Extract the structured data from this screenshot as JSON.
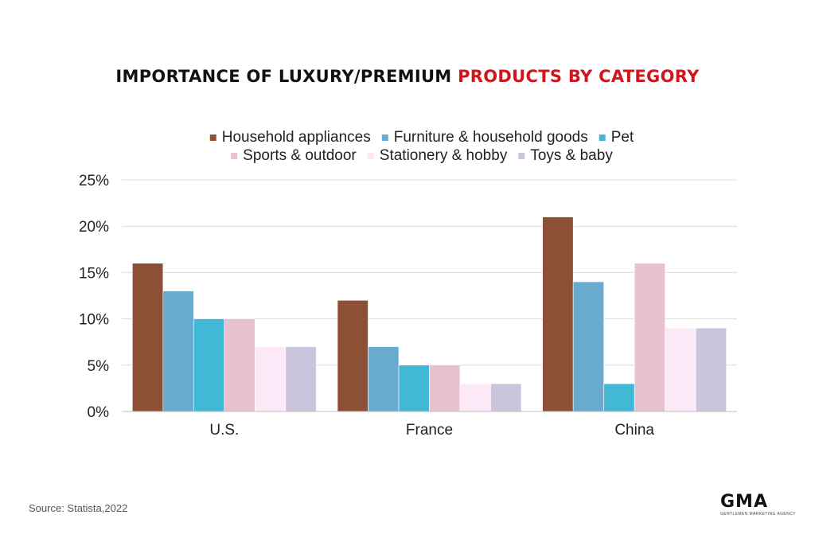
{
  "title": {
    "part1": "IMPORTANCE OF LUXURY/PREMIUM ",
    "part2": "PRODUCTS BY CATEGORY"
  },
  "source": "Source: Statista,2022",
  "logo": {
    "text": "GMA",
    "subtitle": "GENTLEMEN MARKETING AGENCY"
  },
  "colors": {
    "accent": "#d0151c",
    "series": [
      "#8b5035",
      "#68abcf",
      "#40b8d6",
      "#e8c0cf",
      "#fde8f7",
      "#cac4dc"
    ]
  },
  "chart_data": {
    "type": "bar",
    "title": "IMPORTANCE OF LUXURY/PREMIUM PRODUCTS BY CATEGORY",
    "categories": [
      "U.S.",
      "France",
      "China"
    ],
    "series": [
      {
        "name": "Household appliances",
        "values": [
          16,
          12,
          21
        ]
      },
      {
        "name": "Furniture & household goods",
        "values": [
          13,
          7,
          14
        ]
      },
      {
        "name": "Pet",
        "values": [
          10,
          5,
          3
        ]
      },
      {
        "name": "Sports & outdoor",
        "values": [
          10,
          5,
          16
        ]
      },
      {
        "name": "Stationery & hobby",
        "values": [
          7,
          3,
          9
        ]
      },
      {
        "name": "Toys & baby",
        "values": [
          7,
          3,
          9
        ]
      }
    ],
    "yticks": [
      "0%",
      "5%",
      "10%",
      "15%",
      "20%",
      "25%"
    ],
    "ylim": [
      0,
      25
    ],
    "grid": true,
    "legend_position": "top"
  }
}
